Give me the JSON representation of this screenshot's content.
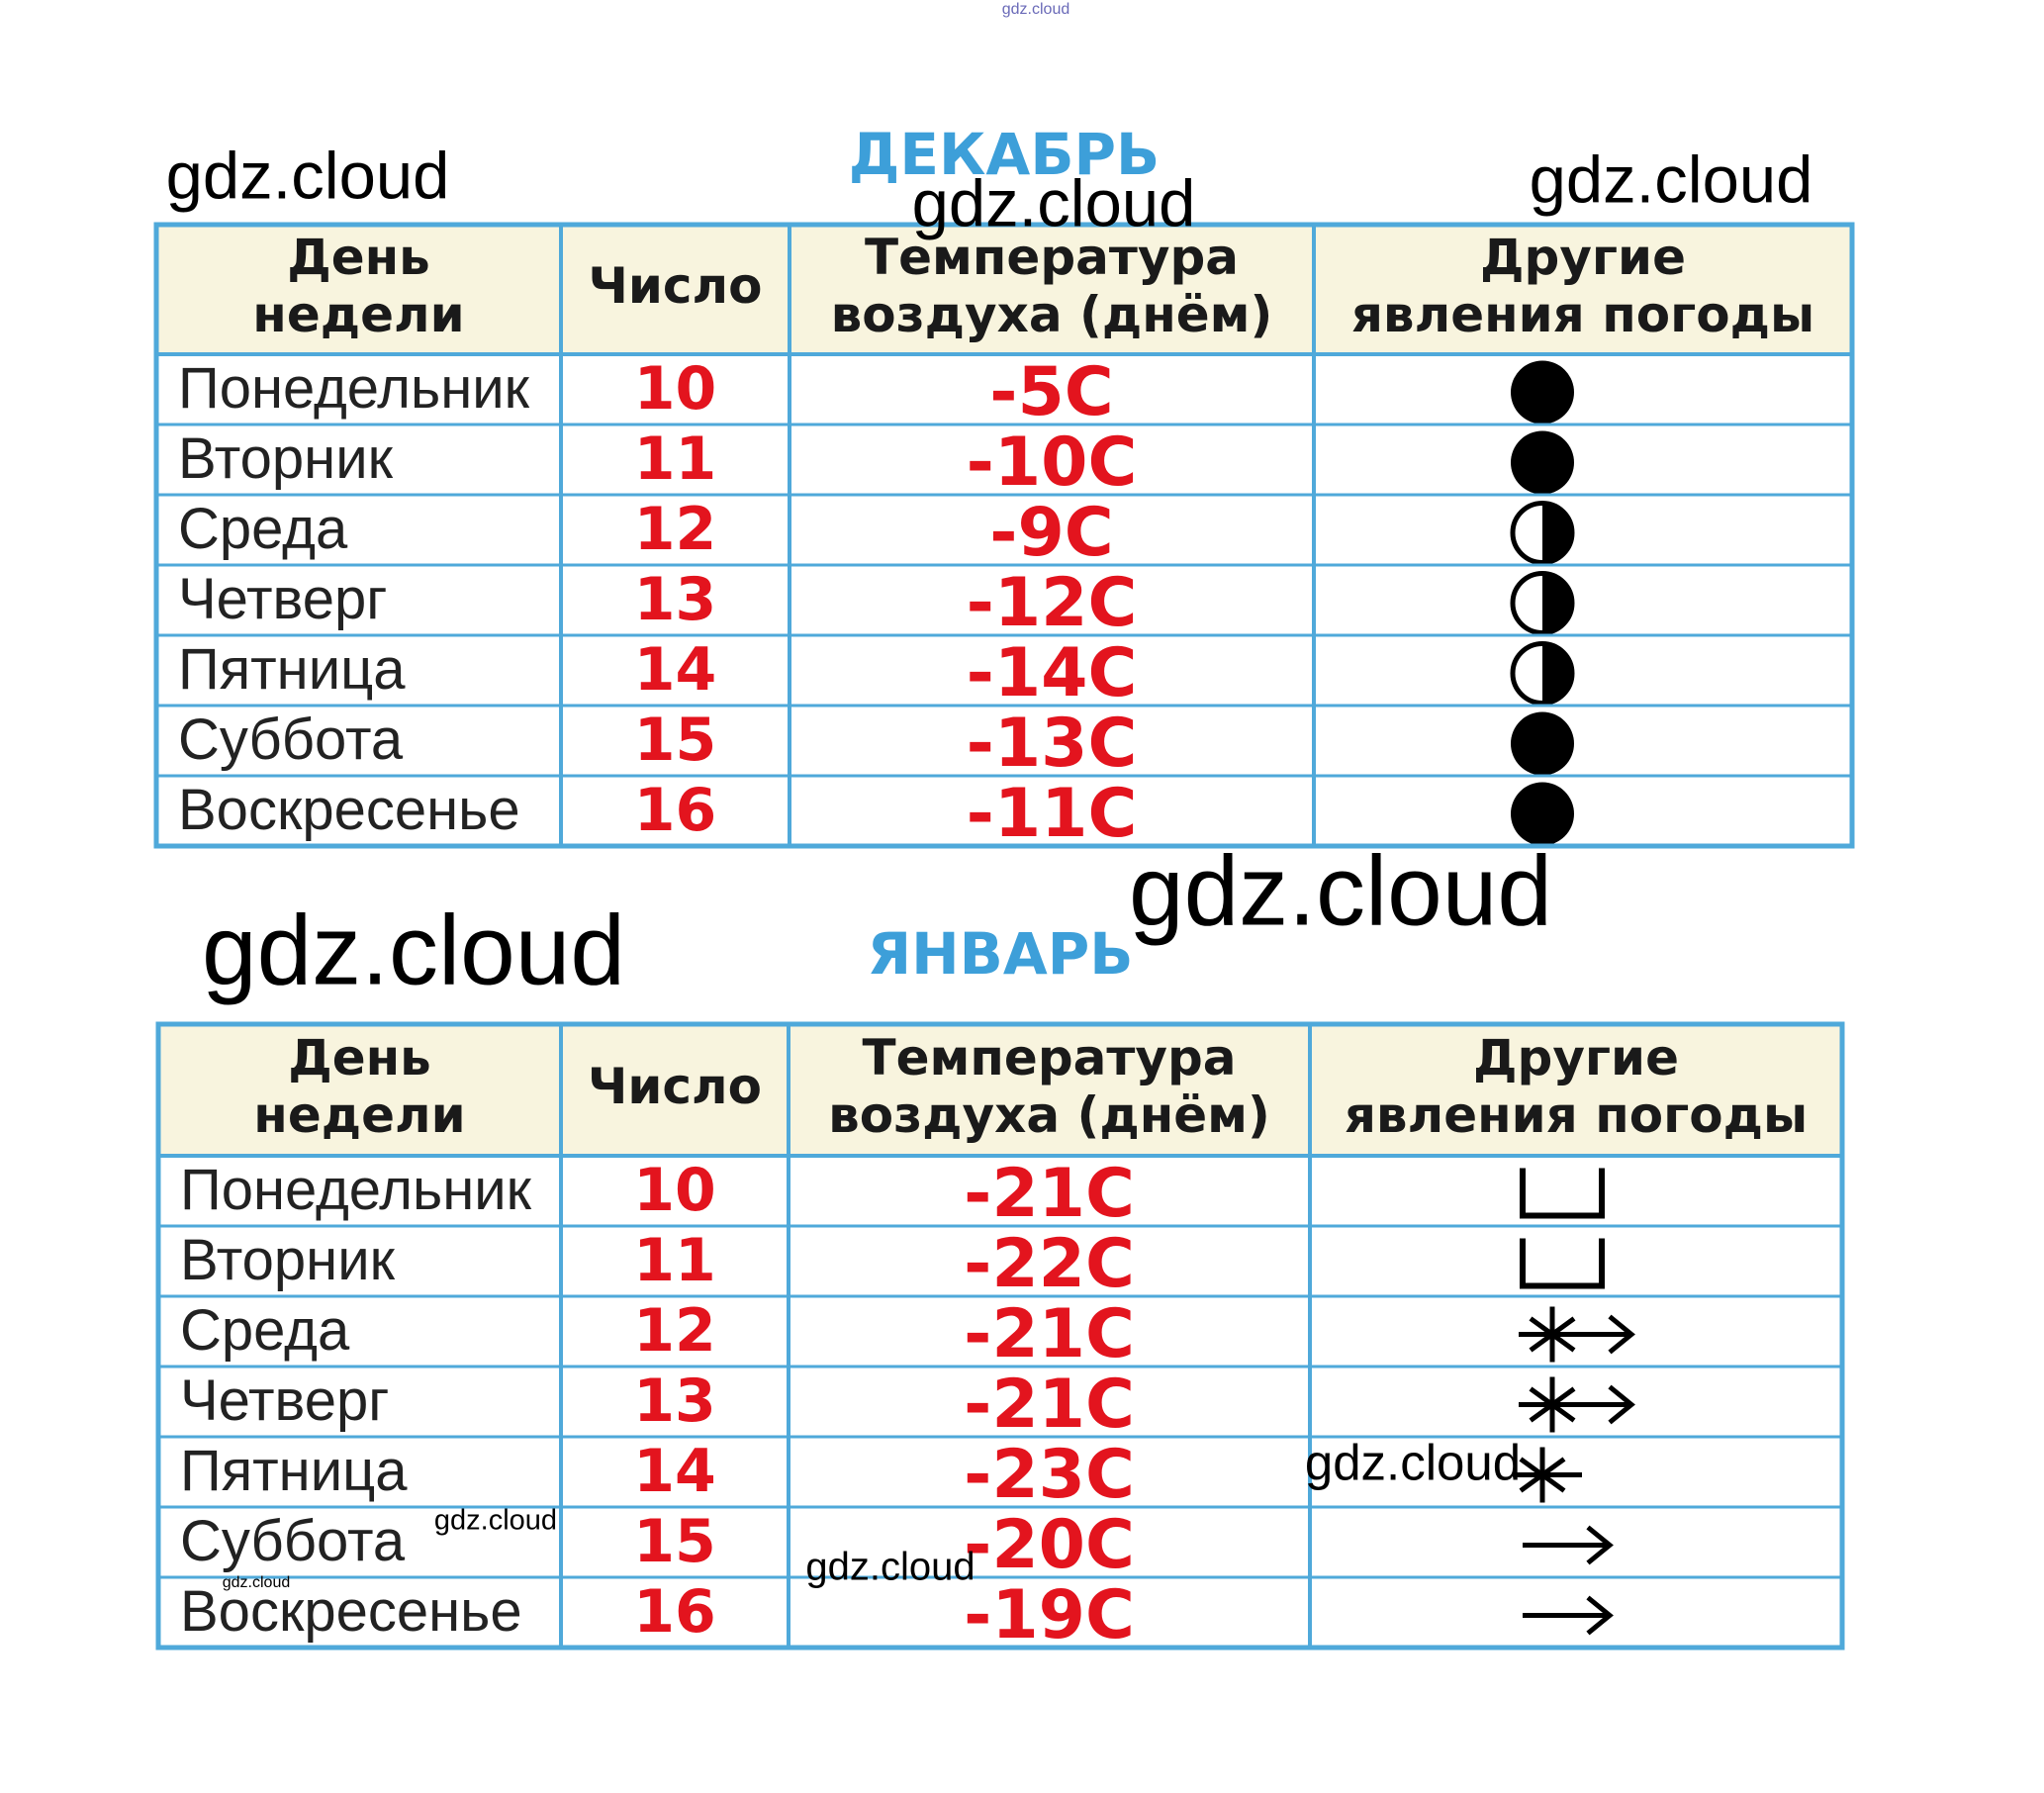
{
  "tables": [
    {
      "title": "ДЕКАБРЬ",
      "header": [
        [
          "День",
          "недели"
        ],
        [
          "Число"
        ],
        [
          "Температура",
          "воздуха  (днём)"
        ],
        [
          "Другие",
          "явления  погоды"
        ]
      ],
      "rows": [
        [
          "Понедельник",
          "10",
          "-5C"
        ],
        [
          "Вторник",
          "11",
          "-10C"
        ],
        [
          "Среда",
          "12",
          "-9C"
        ],
        [
          "Четверг",
          "13",
          "-12C"
        ],
        [
          "Пятница",
          "14",
          "-14C"
        ],
        [
          "Суббота",
          "15",
          "-13C"
        ],
        [
          "Воскресенье",
          "16",
          "-11C"
        ]
      ]
    },
    {
      "title": "ЯНВАРЬ",
      "header": [
        [
          "День",
          "недели"
        ],
        [
          "Число"
        ],
        [
          "Температура",
          "воздуха  (днём)"
        ],
        [
          "Другие",
          "явления  погоды"
        ]
      ],
      "rows": [
        [
          "Понедельник",
          "10",
          "-21C"
        ],
        [
          "Вторник",
          "11",
          "-22C"
        ],
        [
          "Среда",
          "12",
          "-21C"
        ],
        [
          "Четверг",
          "13",
          "-21C"
        ],
        [
          "Пятница",
          "14",
          "-23C"
        ],
        [
          "Суббота",
          "15",
          "-20C"
        ],
        [
          "Воскресенье",
          "16",
          "-19C"
        ]
      ]
    }
  ],
  "watermarks": [
    "gdz.cloud",
    "gdz.cloud",
    "gdz.cloud",
    "gdz.cloud",
    "gdz.cloud",
    "gdz.cloud",
    "gdz.cloud",
    "gdz.cloud",
    "gdz.cloud",
    "gdz.cloud"
  ]
}
